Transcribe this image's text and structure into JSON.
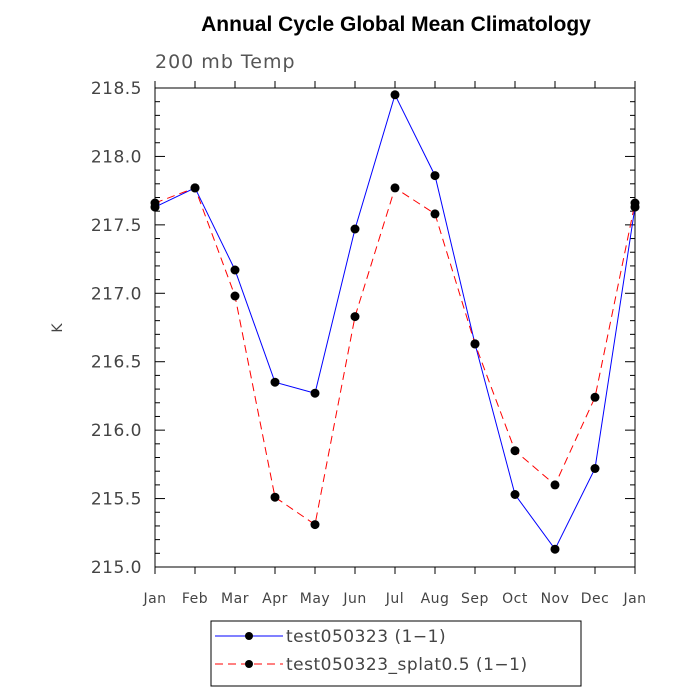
{
  "chart_data": {
    "type": "line",
    "title": "Annual Cycle Global Mean Climatology",
    "subtitle": "200 mb Temp",
    "xlabel": "",
    "ylabel": "K",
    "categories": [
      "Jan",
      "Feb",
      "Mar",
      "Apr",
      "May",
      "Jun",
      "Jul",
      "Aug",
      "Sep",
      "Oct",
      "Nov",
      "Dec",
      "Jan"
    ],
    "ylim": [
      215.0,
      218.5
    ],
    "yticks": [
      "215.0",
      "215.5",
      "216.0",
      "216.5",
      "217.0",
      "217.5",
      "218.0",
      "218.5"
    ],
    "grid": false,
    "legend_position": "bottom-center",
    "series": [
      {
        "name": "test050323 (1−1)",
        "color": "#0000ff",
        "line_style": "solid",
        "marker": "filled-circle",
        "values": [
          217.63,
          217.77,
          217.17,
          216.35,
          216.27,
          217.47,
          218.45,
          217.86,
          216.63,
          215.53,
          215.13,
          215.72,
          217.63
        ]
      },
      {
        "name": "test050323_splat0.5 (1−1)",
        "color": "#ff0000",
        "line_style": "dashed",
        "marker": "filled-circle",
        "values": [
          217.66,
          217.77,
          216.98,
          215.51,
          215.31,
          216.83,
          217.77,
          217.58,
          216.63,
          215.85,
          215.6,
          216.24,
          217.66
        ]
      }
    ]
  }
}
